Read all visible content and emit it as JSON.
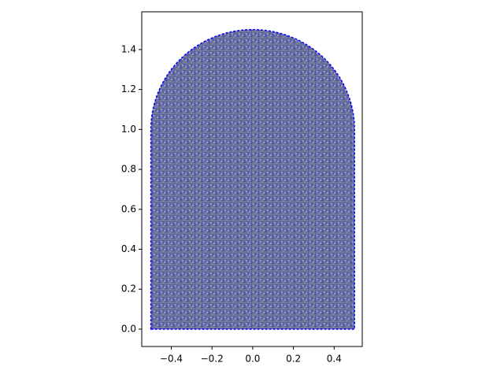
{
  "chart_data": {
    "type": "mesh",
    "domain": {
      "xlim": [
        -0.5,
        0.5
      ],
      "ylim": [
        0,
        1
      ],
      "cap_radius": 0.5
    },
    "xlim": [
      -0.545,
      0.538
    ],
    "ylim": [
      -0.087,
      1.589
    ],
    "xticks": [
      {
        "value": -0.4,
        "label": "−0.4"
      },
      {
        "value": -0.2,
        "label": "−0.2"
      },
      {
        "value": 0,
        "label": "0.0"
      },
      {
        "value": 0.2,
        "label": "0.2"
      },
      {
        "value": 0.4,
        "label": "0.4"
      }
    ],
    "yticks": [
      {
        "value": 0,
        "label": "0.0"
      },
      {
        "value": 0.2,
        "label": "0.2"
      },
      {
        "value": 0.4,
        "label": "0.4"
      },
      {
        "value": 0.6,
        "label": "0.6"
      },
      {
        "value": 0.8,
        "label": "0.8"
      },
      {
        "value": 1,
        "label": "1.0"
      },
      {
        "value": 1.2,
        "label": "1.2"
      },
      {
        "value": 1.4,
        "label": "1.4"
      }
    ],
    "edge_color": "#808080",
    "boundary_color": "#0000ff"
  }
}
